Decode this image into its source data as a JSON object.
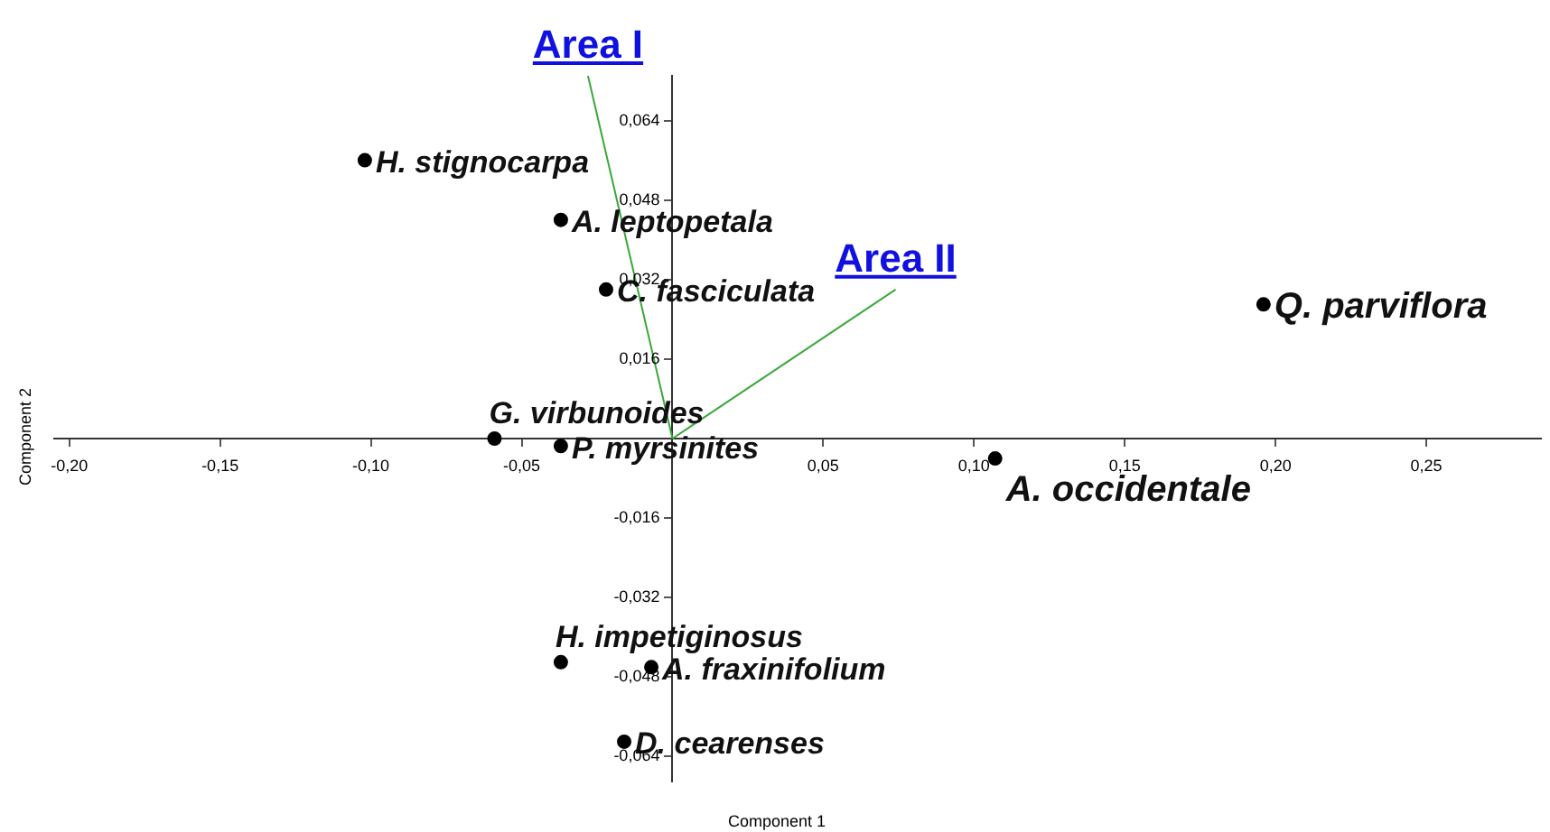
{
  "chart_data": {
    "type": "scatter",
    "xlabel": "Component 1",
    "ylabel": "Component 2",
    "xlim": [
      -0.205,
      0.288
    ],
    "ylim": [
      -0.069,
      0.073
    ],
    "xticks": [
      {
        "value": -0.2,
        "label": "-0,20"
      },
      {
        "value": -0.15,
        "label": "-0,15"
      },
      {
        "value": -0.1,
        "label": "-0,10"
      },
      {
        "value": -0.05,
        "label": "-0,05"
      },
      {
        "value": 0.05,
        "label": "0,05"
      },
      {
        "value": 0.1,
        "label": "0,10"
      },
      {
        "value": 0.15,
        "label": "0,15"
      },
      {
        "value": 0.2,
        "label": "0,20"
      },
      {
        "value": 0.25,
        "label": "0,25"
      }
    ],
    "yticks": [
      {
        "value": -0.064,
        "label": "-0,064"
      },
      {
        "value": -0.048,
        "label": "-0,048"
      },
      {
        "value": -0.032,
        "label": "-0,032"
      },
      {
        "value": -0.016,
        "label": "-0,016"
      },
      {
        "value": 0.016,
        "label": "0,016"
      },
      {
        "value": 0.032,
        "label": "0,032"
      },
      {
        "value": 0.048,
        "label": "0,048"
      },
      {
        "value": 0.064,
        "label": "0,064"
      }
    ],
    "grid": false,
    "legend": false,
    "marker": "circle",
    "series": [
      {
        "name": "H. stignocarpa",
        "color": "#000000",
        "x": [
          -0.102
        ],
        "values": [
          0.056
        ]
      },
      {
        "name": "A. leptopetala",
        "color": "#000000",
        "x": [
          -0.037
        ],
        "values": [
          0.044
        ]
      },
      {
        "name": "C. fasciculata",
        "color": "#000000",
        "x": [
          -0.022
        ],
        "values": [
          0.03
        ]
      },
      {
        "name": "Q. parviflora",
        "color": "#000000",
        "x": [
          0.196
        ],
        "values": [
          0.027
        ]
      },
      {
        "name": "G. virbunoides",
        "color": "#000000",
        "x": [
          -0.059
        ],
        "values": [
          0.0
        ]
      },
      {
        "name": "P. myrsinites",
        "color": "#000000",
        "x": [
          -0.037
        ],
        "values": [
          -0.0015
        ]
      },
      {
        "name": "A. occidentale",
        "color": "#000000",
        "x": [
          0.107
        ],
        "values": [
          -0.004
        ]
      },
      {
        "name": "H. impetiginosus",
        "color": "#000000",
        "x": [
          -0.037
        ],
        "values": [
          -0.045
        ]
      },
      {
        "name": "A. fraxinifolium",
        "color": "#000000",
        "x": [
          -0.007
        ],
        "values": [
          -0.046
        ]
      },
      {
        "name": "D. cearenses",
        "color": "#000000",
        "x": [
          -0.016
        ],
        "values": [
          -0.061
        ]
      },
      {
        "name": "Area I",
        "type": "line",
        "marker": "none",
        "color": "#3aa83a",
        "x": [
          0,
          -0.028
        ],
        "values": [
          0,
          0.073
        ]
      },
      {
        "name": "Area II",
        "type": "line",
        "marker": "none",
        "color": "#3aa83a",
        "x": [
          0,
          0.074
        ],
        "values": [
          0,
          0.03
        ]
      }
    ]
  }
}
